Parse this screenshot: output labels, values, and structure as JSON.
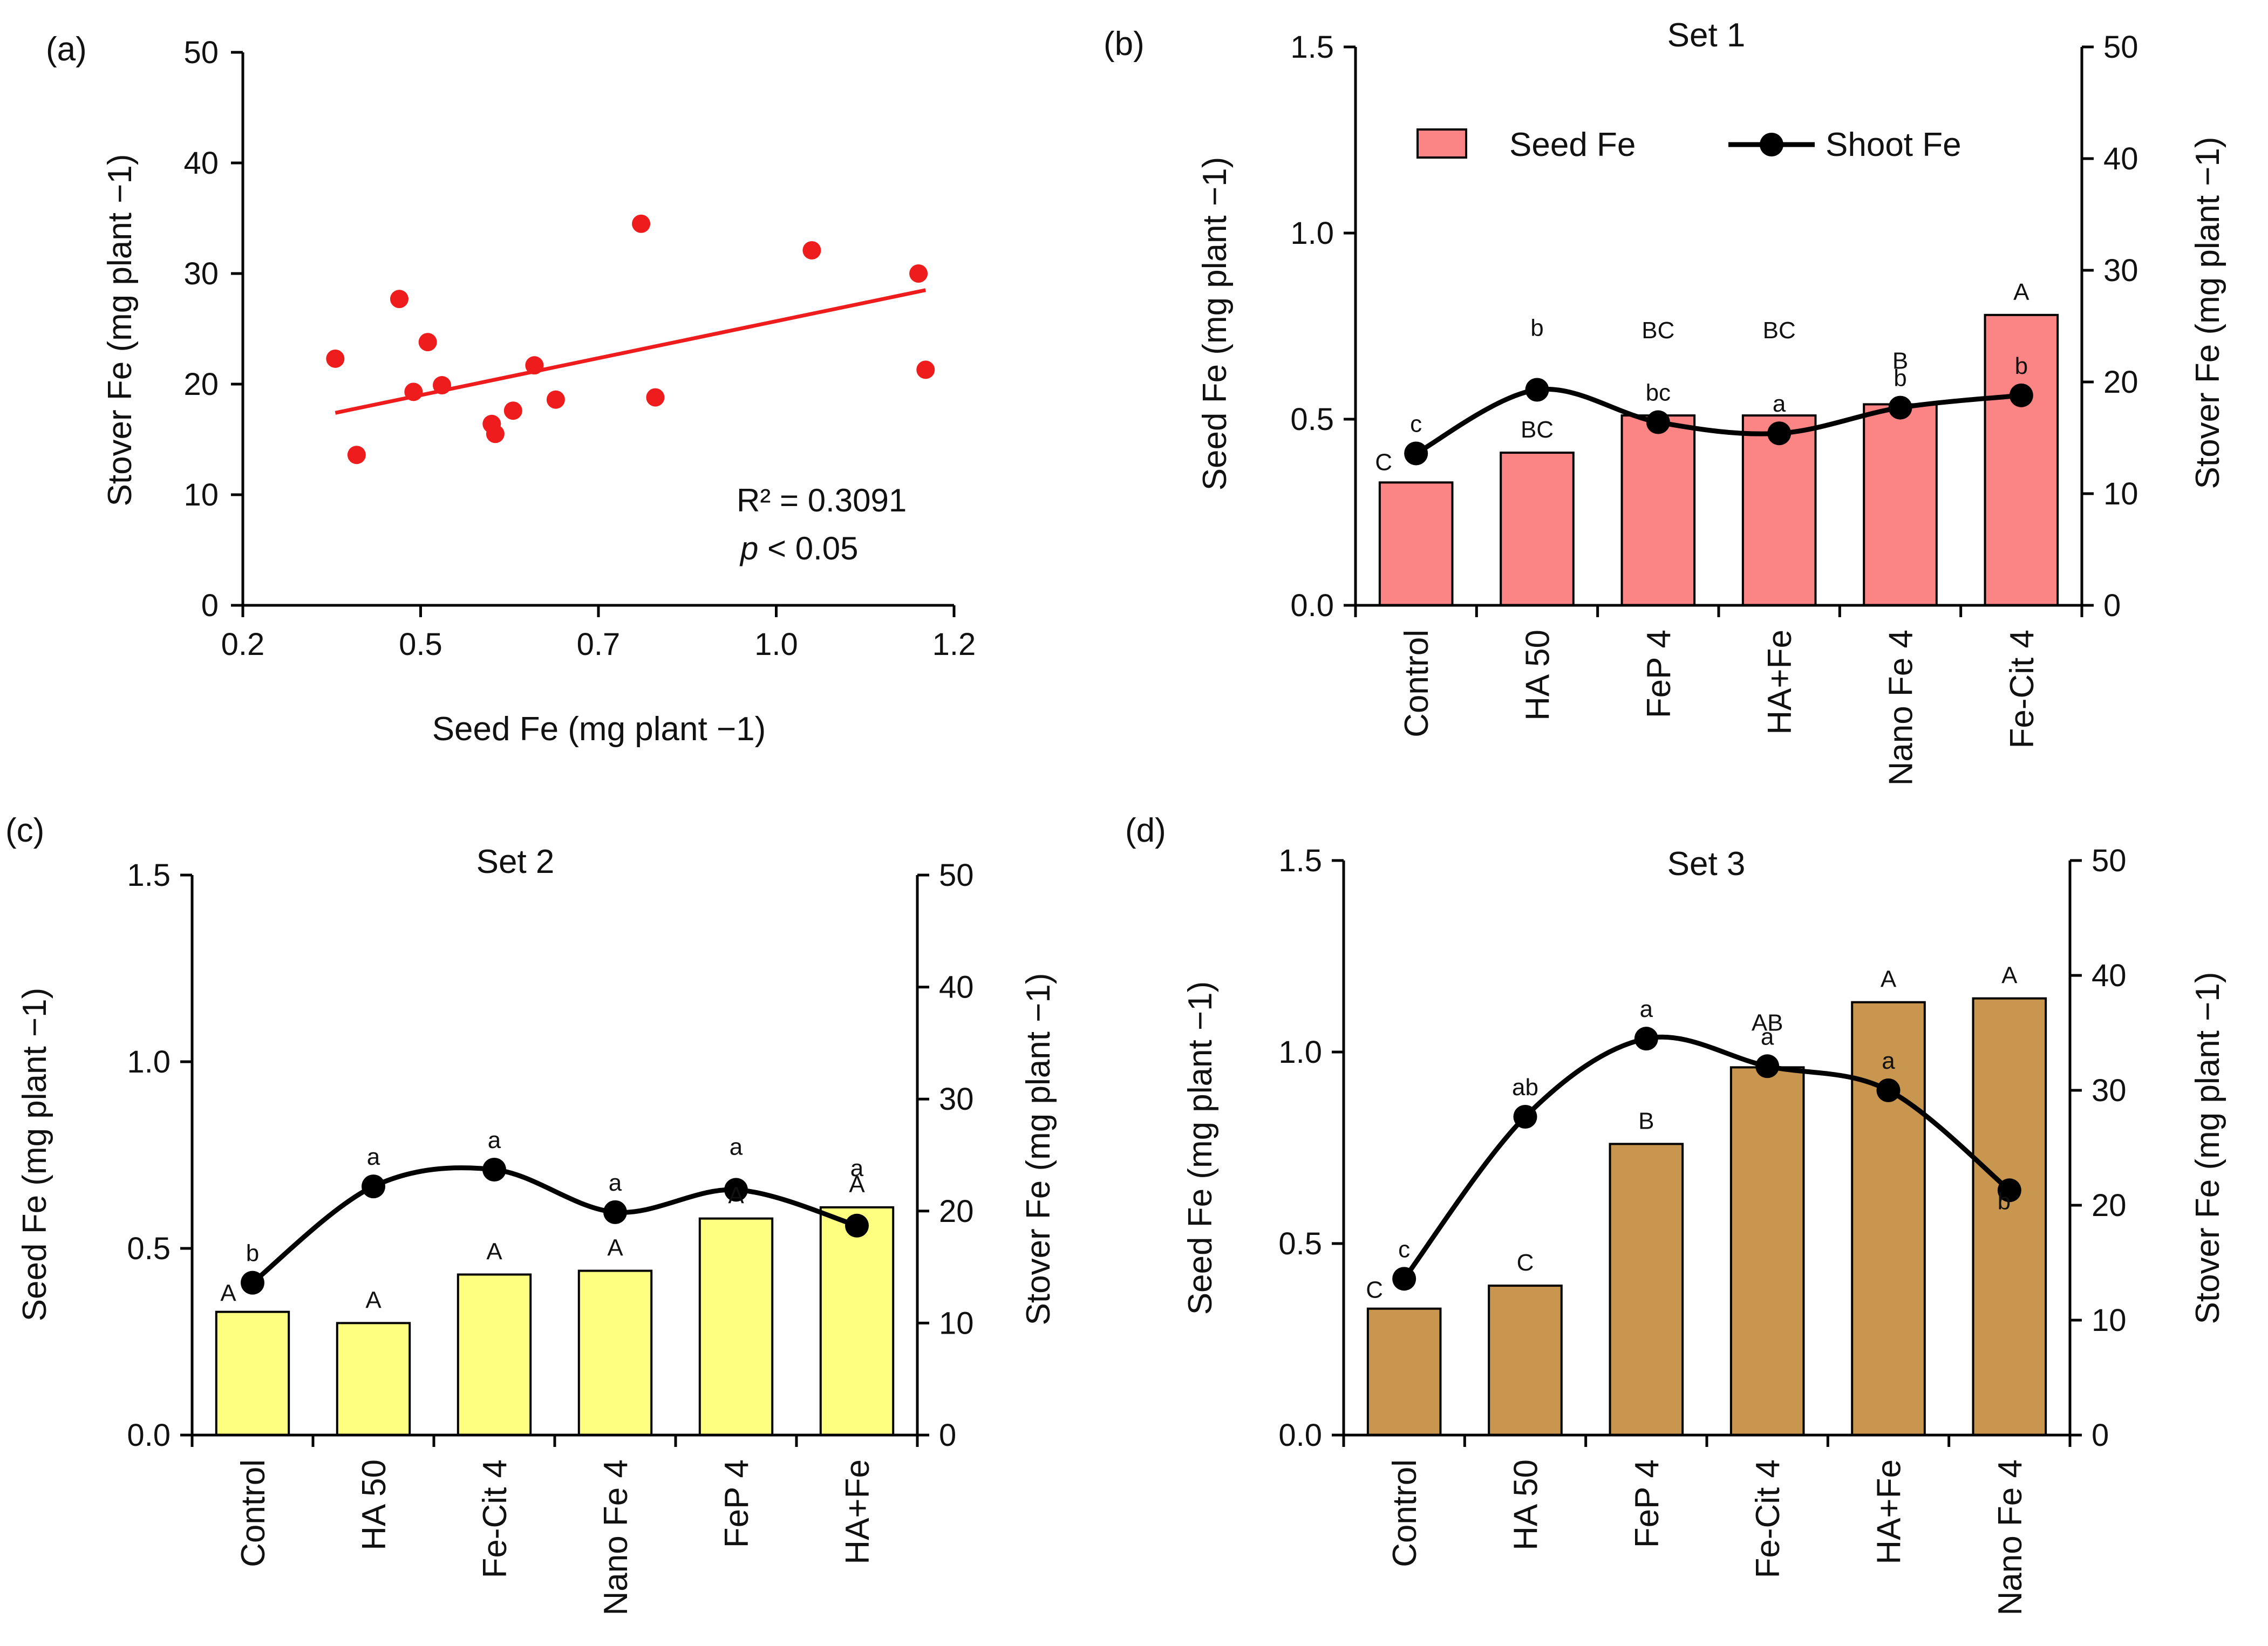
{
  "colors": {
    "scatter_point": "#ee1c1c",
    "trend_line": "#ee1c1c",
    "set1_bar": "#fb8585",
    "set2_bar": "#fefe80",
    "set3_bar": "#c8964e",
    "line": "#000000"
  },
  "chart_data": [
    {
      "id": "a",
      "type": "scatter",
      "panel_label": "(a)",
      "xlabel": "Seed Fe (mg plant −1)",
      "ylabel": "Stover Fe (mg plant −1)",
      "xlim": [
        0.2,
        1.2
      ],
      "ylim": [
        0,
        50
      ],
      "xticks": [
        "0.2",
        "0.5",
        "0.7",
        "1.0",
        "1.2"
      ],
      "yticks": [
        "0",
        "10",
        "20",
        "30",
        "40",
        "50"
      ],
      "x": [
        0.33,
        0.36,
        0.42,
        0.44,
        0.46,
        0.48,
        0.55,
        0.555,
        0.58,
        0.61,
        0.64,
        0.76,
        0.78,
        1.0,
        1.15,
        1.16
      ],
      "y": [
        22.3,
        13.6,
        27.7,
        19.3,
        23.8,
        19.9,
        16.4,
        15.5,
        17.6,
        21.7,
        18.6,
        34.5,
        18.8,
        32.1,
        30.0,
        21.3
      ],
      "trendline": {
        "x": [
          0.33,
          1.16
        ],
        "y": [
          17.4,
          28.5
        ]
      },
      "r2_label": "R² = 0.3091",
      "p_label_italic": "p",
      "p_label_rest": " < 0.05"
    },
    {
      "id": "b",
      "type": "bar+line",
      "panel_label": "(b)",
      "title": "Set 1",
      "categories": [
        "Control",
        "HA 50",
        "FeP 4",
        "HA+Fe",
        "Nano Fe 4",
        "Fe-Cit 4"
      ],
      "bar_series": {
        "name": "Seed Fe",
        "values": [
          0.33,
          0.41,
          0.51,
          0.51,
          0.54,
          0.78
        ],
        "letters": [
          "C",
          "BC",
          "BC",
          "BC",
          "B",
          "A"
        ]
      },
      "line_series": {
        "name": "Shoot Fe",
        "values": [
          13.6,
          19.3,
          16.4,
          15.4,
          17.7,
          18.8
        ],
        "letters": [
          "c",
          "b",
          "bc",
          "a",
          "b",
          "b"
        ]
      },
      "ylabel_left": "Seed Fe (mg plant −1)",
      "ylabel_right": "Stover Fe (mg plant −1)",
      "ylim_left": [
        0,
        1.5
      ],
      "ylim_right": [
        0,
        50
      ],
      "yticks_left": [
        "0.0",
        "0.5",
        "1.0",
        "1.5"
      ],
      "yticks_right": [
        "0",
        "10",
        "20",
        "30",
        "40",
        "50"
      ],
      "legend": {
        "bar_label": "Seed Fe",
        "line_label": "Shoot Fe"
      }
    },
    {
      "id": "c",
      "type": "bar+line",
      "panel_label": "(c)",
      "title": "Set 2",
      "categories": [
        "Control",
        "HA 50",
        "Fe-Cit 4",
        "Nano Fe 4",
        "FeP 4",
        "HA+Fe"
      ],
      "bar_series": {
        "name": "Seed Fe",
        "values": [
          0.33,
          0.3,
          0.43,
          0.44,
          0.58,
          0.61
        ],
        "letters": [
          "A",
          "A",
          "A",
          "A",
          "A",
          "A"
        ]
      },
      "line_series": {
        "name": "Shoot Fe",
        "values": [
          13.6,
          22.2,
          23.7,
          19.9,
          21.9,
          18.7
        ],
        "letters": [
          "b",
          "a",
          "a",
          "a",
          "a",
          "a"
        ]
      },
      "ylabel_left": "Seed Fe (mg plant −1)",
      "ylabel_right": "Stover Fe (mg plant −1)",
      "ylim_left": [
        0,
        1.5
      ],
      "ylim_right": [
        0,
        50
      ],
      "yticks_left": [
        "0.0",
        "0.5",
        "1.0",
        "1.5"
      ],
      "yticks_right": [
        "0",
        "10",
        "20",
        "30",
        "40",
        "50"
      ]
    },
    {
      "id": "d",
      "type": "bar+line",
      "panel_label": "(d)",
      "title": "Set 3",
      "categories": [
        "Control",
        "HA 50",
        "FeP 4",
        "Fe-Cit 4",
        "HA+Fe",
        "Nano Fe 4"
      ],
      "bar_series": {
        "name": "Seed Fe",
        "values": [
          0.33,
          0.39,
          0.76,
          0.96,
          1.13,
          1.14
        ],
        "letters": [
          "C",
          "C",
          "B",
          "AB",
          "A",
          "A"
        ]
      },
      "line_series": {
        "name": "Shoot Fe",
        "values": [
          13.6,
          27.7,
          34.5,
          32.1,
          30.0,
          21.3
        ],
        "letters": [
          "c",
          "ab",
          "a",
          "a",
          "a",
          "b"
        ]
      },
      "ylabel_left": "Seed Fe (mg plant −1)",
      "ylabel_right": "Stover Fe (mg plant −1)",
      "ylim_left": [
        0,
        1.5
      ],
      "ylim_right": [
        0,
        50
      ],
      "yticks_left": [
        "0.0",
        "0.5",
        "1.0",
        "1.5"
      ],
      "yticks_right": [
        "0",
        "10",
        "20",
        "30",
        "40",
        "50"
      ]
    }
  ]
}
